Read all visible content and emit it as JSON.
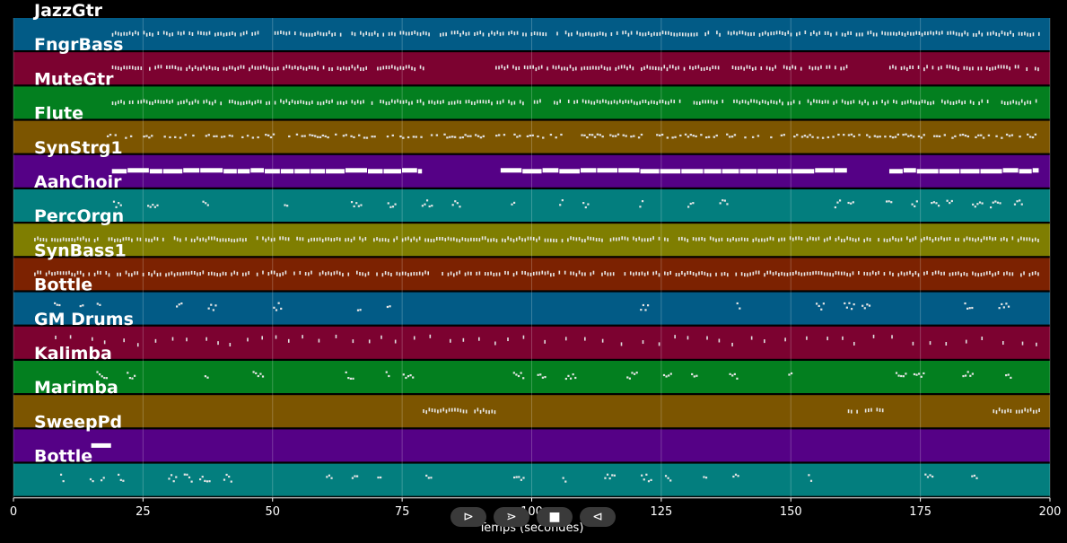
{
  "chart_data": {
    "type": "piano-roll",
    "xlabel": "Temps (secondes)",
    "xlim": [
      0,
      200
    ],
    "xticks": [
      0,
      25,
      50,
      75,
      100,
      125,
      150,
      175,
      200
    ],
    "tick_labels": [
      "0",
      "25",
      "50",
      "75",
      "100",
      "125",
      "150",
      "175",
      "200"
    ],
    "grid": true,
    "tracks": [
      {
        "name": "JazzGtr",
        "color": "#025b86",
        "active": [
          [
            19,
            198
          ]
        ],
        "pattern": "dense"
      },
      {
        "name": "FngrBass",
        "color": "#7c0230",
        "active": [
          [
            19,
            79
          ],
          [
            93,
            161
          ],
          [
            169,
            198
          ]
        ],
        "pattern": "dense"
      },
      {
        "name": "MuteGtr",
        "color": "#037f1f",
        "active": [
          [
            19,
            198
          ]
        ],
        "pattern": "dense"
      },
      {
        "name": "Flute",
        "color": "#7c5500",
        "active": [
          [
            18,
            198
          ]
        ],
        "pattern": "phrases"
      },
      {
        "name": "SynStrg1",
        "color": "#550186",
        "active": [
          [
            19,
            79
          ],
          [
            94,
            161
          ],
          [
            169,
            198
          ]
        ],
        "pattern": "sustained"
      },
      {
        "name": "AahChoir",
        "color": "#037e7e",
        "active": [
          [
            18,
            198
          ]
        ],
        "pattern": "sparse"
      },
      {
        "name": "PercOrgn",
        "color": "#7f7e01",
        "active": [
          [
            4,
            198
          ]
        ],
        "pattern": "dense"
      },
      {
        "name": "SynBass1",
        "color": "#7c2201",
        "active": [
          [
            4,
            198
          ]
        ],
        "pattern": "dense"
      },
      {
        "name": "Bottle",
        "color": "#025b86",
        "active": [
          [
            3,
            198
          ]
        ],
        "pattern": "sparse"
      },
      {
        "name": "GM Drums",
        "color": "#7c0230",
        "active": [
          [
            8,
            198
          ]
        ],
        "pattern": "hits"
      },
      {
        "name": "Kalimba",
        "color": "#037f1f",
        "active": [
          [
            4,
            78
          ],
          [
            94,
            161
          ],
          [
            169,
            198
          ]
        ],
        "pattern": "sparse"
      },
      {
        "name": "Marimba",
        "color": "#7c5500",
        "active": [
          [
            79,
            93
          ],
          [
            161,
            168
          ],
          [
            189,
            198
          ]
        ],
        "pattern": "dense"
      },
      {
        "name": "SweepPd",
        "color": "#550186",
        "active": [
          [
            15,
            19
          ]
        ],
        "pattern": "sustained"
      },
      {
        "name": "Bottle",
        "color": "#037e7e",
        "active": [
          [
            3,
            198
          ]
        ],
        "pattern": "sparse"
      }
    ]
  },
  "controls": {
    "play_forward": "⊳",
    "next": "⋗",
    "stop": "■",
    "play_backward": "⊲"
  }
}
